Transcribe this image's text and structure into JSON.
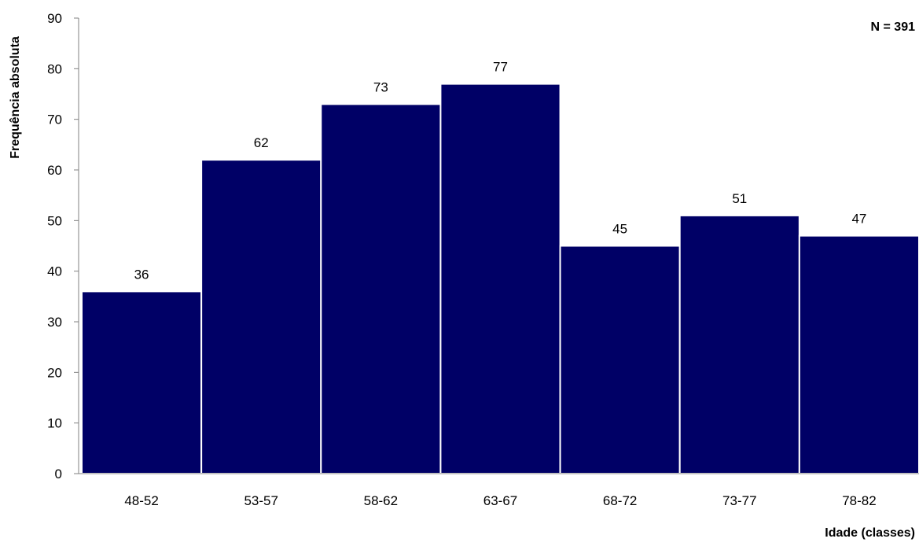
{
  "chart_data": {
    "type": "bar",
    "categories": [
      "48-52",
      "53-57",
      "58-62",
      "63-67",
      "68-72",
      "73-77",
      "78-82"
    ],
    "values": [
      36,
      62,
      73,
      77,
      45,
      51,
      47
    ],
    "data_labels": [
      "36",
      "62",
      "73",
      "77",
      "45",
      "51",
      "47"
    ],
    "xlabel": "Idade (classes)",
    "ylabel": "Frequência absoluta",
    "annotation": "N = 391",
    "ylim": [
      0,
      90
    ],
    "yticks": [
      "0",
      "10",
      "20",
      "30",
      "40",
      "50",
      "60",
      "70",
      "80",
      "90"
    ],
    "grid": false,
    "legend": "none",
    "bar_color": "#000066"
  }
}
